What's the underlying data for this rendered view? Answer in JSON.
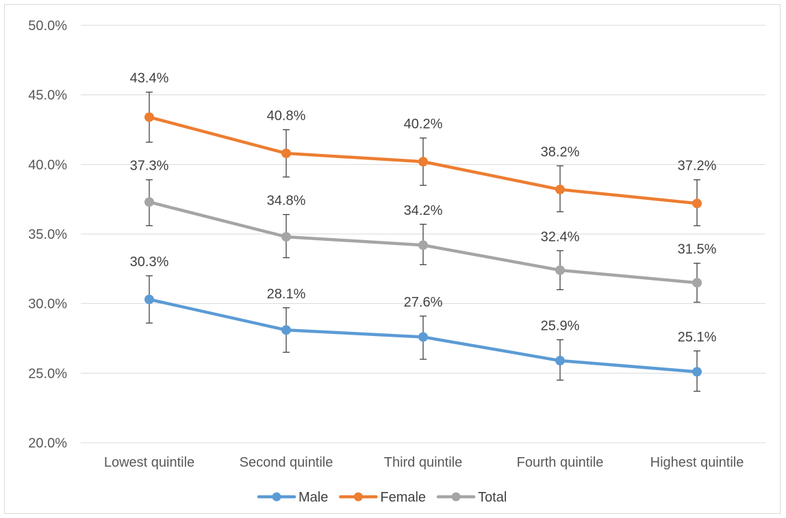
{
  "chart_data": {
    "type": "line",
    "title": "",
    "xlabel": "",
    "ylabel": "",
    "categories": [
      "Lowest quintile",
      "Second quintile",
      "Third quintile",
      "Fourth quintile",
      "Highest quintile"
    ],
    "ylim": [
      20,
      50
    ],
    "ytick_step": 5,
    "ytick_labels": [
      "20.0%",
      "25.0%",
      "30.0%",
      "35.0%",
      "40.0%",
      "45.0%",
      "50.0%"
    ],
    "grid": true,
    "legend_position": "bottom",
    "series": [
      {
        "name": "Male",
        "color": "#5b9bd5",
        "values": [
          30.3,
          28.1,
          27.6,
          25.9,
          25.1
        ],
        "labels": [
          "30.3%",
          "28.1%",
          "27.6%",
          "25.9%",
          "25.1%"
        ],
        "err_low": [
          28.6,
          26.5,
          26.0,
          24.5,
          23.7
        ],
        "err_high": [
          32.0,
          29.7,
          29.1,
          27.4,
          26.6
        ]
      },
      {
        "name": "Female",
        "color": "#ed7d31",
        "values": [
          43.4,
          40.8,
          40.2,
          38.2,
          37.2
        ],
        "labels": [
          "43.4%",
          "40.8%",
          "40.2%",
          "38.2%",
          "37.2%"
        ],
        "err_low": [
          41.6,
          39.1,
          38.5,
          36.6,
          35.6
        ],
        "err_high": [
          45.2,
          42.5,
          41.9,
          39.9,
          38.9
        ]
      },
      {
        "name": "Total",
        "color": "#a5a5a5",
        "values": [
          37.3,
          34.8,
          34.2,
          32.4,
          31.5
        ],
        "labels": [
          "37.3%",
          "34.8%",
          "34.2%",
          "32.4%",
          "31.5%"
        ],
        "err_low": [
          35.6,
          33.3,
          32.8,
          31.0,
          30.1
        ],
        "err_high": [
          38.9,
          36.4,
          35.7,
          33.8,
          32.9
        ]
      }
    ]
  }
}
